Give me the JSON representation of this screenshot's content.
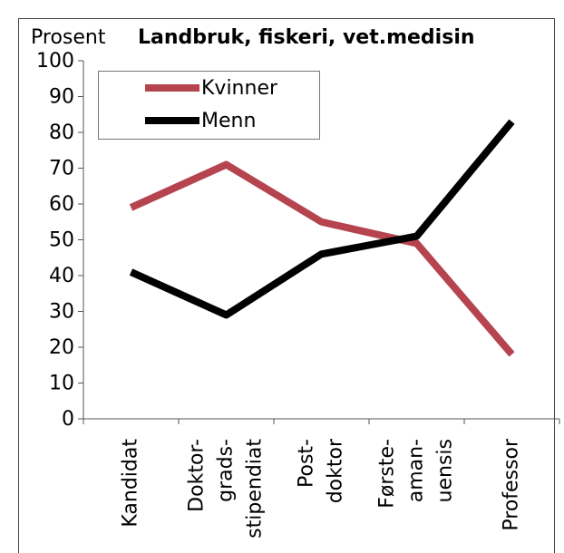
{
  "chart_data": {
    "type": "line",
    "title": "Landbruk, fiskeri, vet.medisin",
    "y_label": "Prosent",
    "categories": [
      "Kandidat",
      "Doktor-\ngrads-\nstipendiat",
      "Post-\ndoktor",
      "Første-\naman-\nuensis",
      "Professor"
    ],
    "series": [
      {
        "name": "Kvinner",
        "color": "#b5444f",
        "values": [
          59,
          71,
          55,
          49,
          18
        ]
      },
      {
        "name": "Menn",
        "color": "#000000",
        "values": [
          41,
          29,
          46,
          51,
          83
        ]
      }
    ],
    "ylim": [
      0,
      100
    ],
    "yticks": [
      0,
      10,
      20,
      30,
      40,
      50,
      60,
      70,
      80,
      90,
      100
    ],
    "legend": "upper left"
  }
}
